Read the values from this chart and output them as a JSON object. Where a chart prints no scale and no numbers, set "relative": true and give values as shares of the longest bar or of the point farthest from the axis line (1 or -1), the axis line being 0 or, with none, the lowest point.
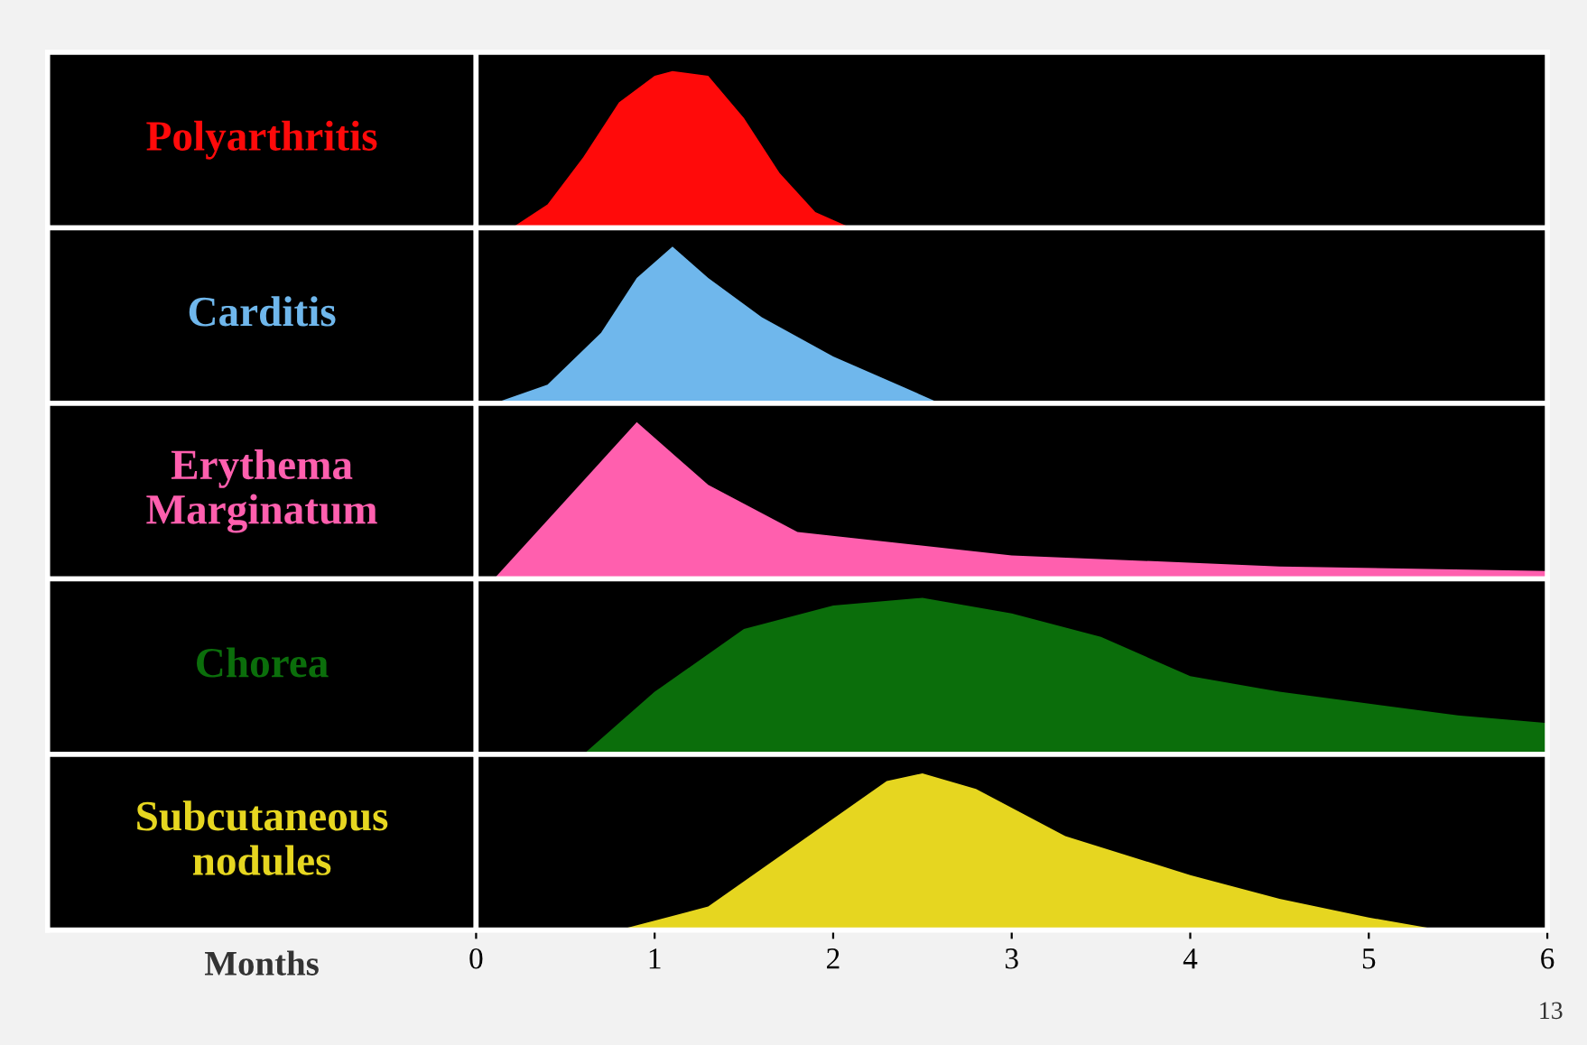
{
  "chart_data": [
    {
      "type": "area",
      "relative": true,
      "ylabel": "Polyarthritis",
      "xlim": [
        0,
        6
      ],
      "tick_labels": false,
      "legend": false,
      "grid": false,
      "series": [
        {
          "color": "#ff0a0a",
          "x": [
            0.2,
            0.4,
            0.6,
            0.8,
            1.0,
            1.1,
            1.3,
            1.5,
            1.7,
            1.9,
            2.1
          ],
          "values": [
            0,
            0.15,
            0.45,
            0.8,
            0.97,
            1,
            0.97,
            0.7,
            0.35,
            0.1,
            0
          ]
        }
      ]
    },
    {
      "type": "area",
      "relative": true,
      "ylabel": "Carditis",
      "xlim": [
        0,
        6
      ],
      "tick_labels": false,
      "legend": false,
      "grid": false,
      "series": [
        {
          "color": "#6fb7ec",
          "x": [
            0.1,
            0.4,
            0.7,
            0.9,
            1.1,
            1.3,
            1.6,
            2.0,
            2.4,
            2.6
          ],
          "values": [
            0,
            0.12,
            0.45,
            0.8,
            1,
            0.8,
            0.55,
            0.3,
            0.1,
            0
          ]
        }
      ]
    },
    {
      "type": "area",
      "relative": true,
      "ylabel": "Erythema\nMarginatum",
      "xlim": [
        0,
        6
      ],
      "tick_labels": false,
      "legend": false,
      "grid": false,
      "series": [
        {
          "color": "#ff5fae",
          "x": [
            0.1,
            0.5,
            0.9,
            1.3,
            1.8,
            3.0,
            4.5,
            6.0
          ],
          "values": [
            0,
            0.5,
            1,
            0.6,
            0.3,
            0.15,
            0.08,
            0.05
          ]
        }
      ]
    },
    {
      "type": "area",
      "relative": true,
      "ylabel": "Chorea",
      "xlim": [
        0,
        6
      ],
      "tick_labels": false,
      "legend": false,
      "grid": false,
      "series": [
        {
          "color": "#0b6e0b",
          "x": [
            0.6,
            1.0,
            1.5,
            2.0,
            2.5,
            3.0,
            3.5,
            4.0,
            4.5,
            5.5,
            6.0
          ],
          "values": [
            0,
            0.4,
            0.8,
            0.95,
            1,
            0.9,
            0.75,
            0.5,
            0.4,
            0.25,
            0.2
          ]
        }
      ]
    },
    {
      "type": "area",
      "relative": true,
      "ylabel": "Subcutaneous\nnodules",
      "xlabel": "Months",
      "xlim": [
        0,
        6
      ],
      "xticks": [
        0,
        1,
        2,
        3,
        4,
        5,
        6
      ],
      "tick_labels": "x",
      "legend": false,
      "grid": false,
      "annotations": [
        "13"
      ],
      "series": [
        {
          "color": "#e6d620",
          "x": [
            0.8,
            1.3,
            1.8,
            2.3,
            2.5,
            2.8,
            3.3,
            4.0,
            4.5,
            5.0,
            5.4
          ],
          "values": [
            0,
            0.15,
            0.55,
            0.95,
            1,
            0.9,
            0.6,
            0.35,
            0.2,
            0.08,
            0
          ]
        }
      ]
    }
  ]
}
